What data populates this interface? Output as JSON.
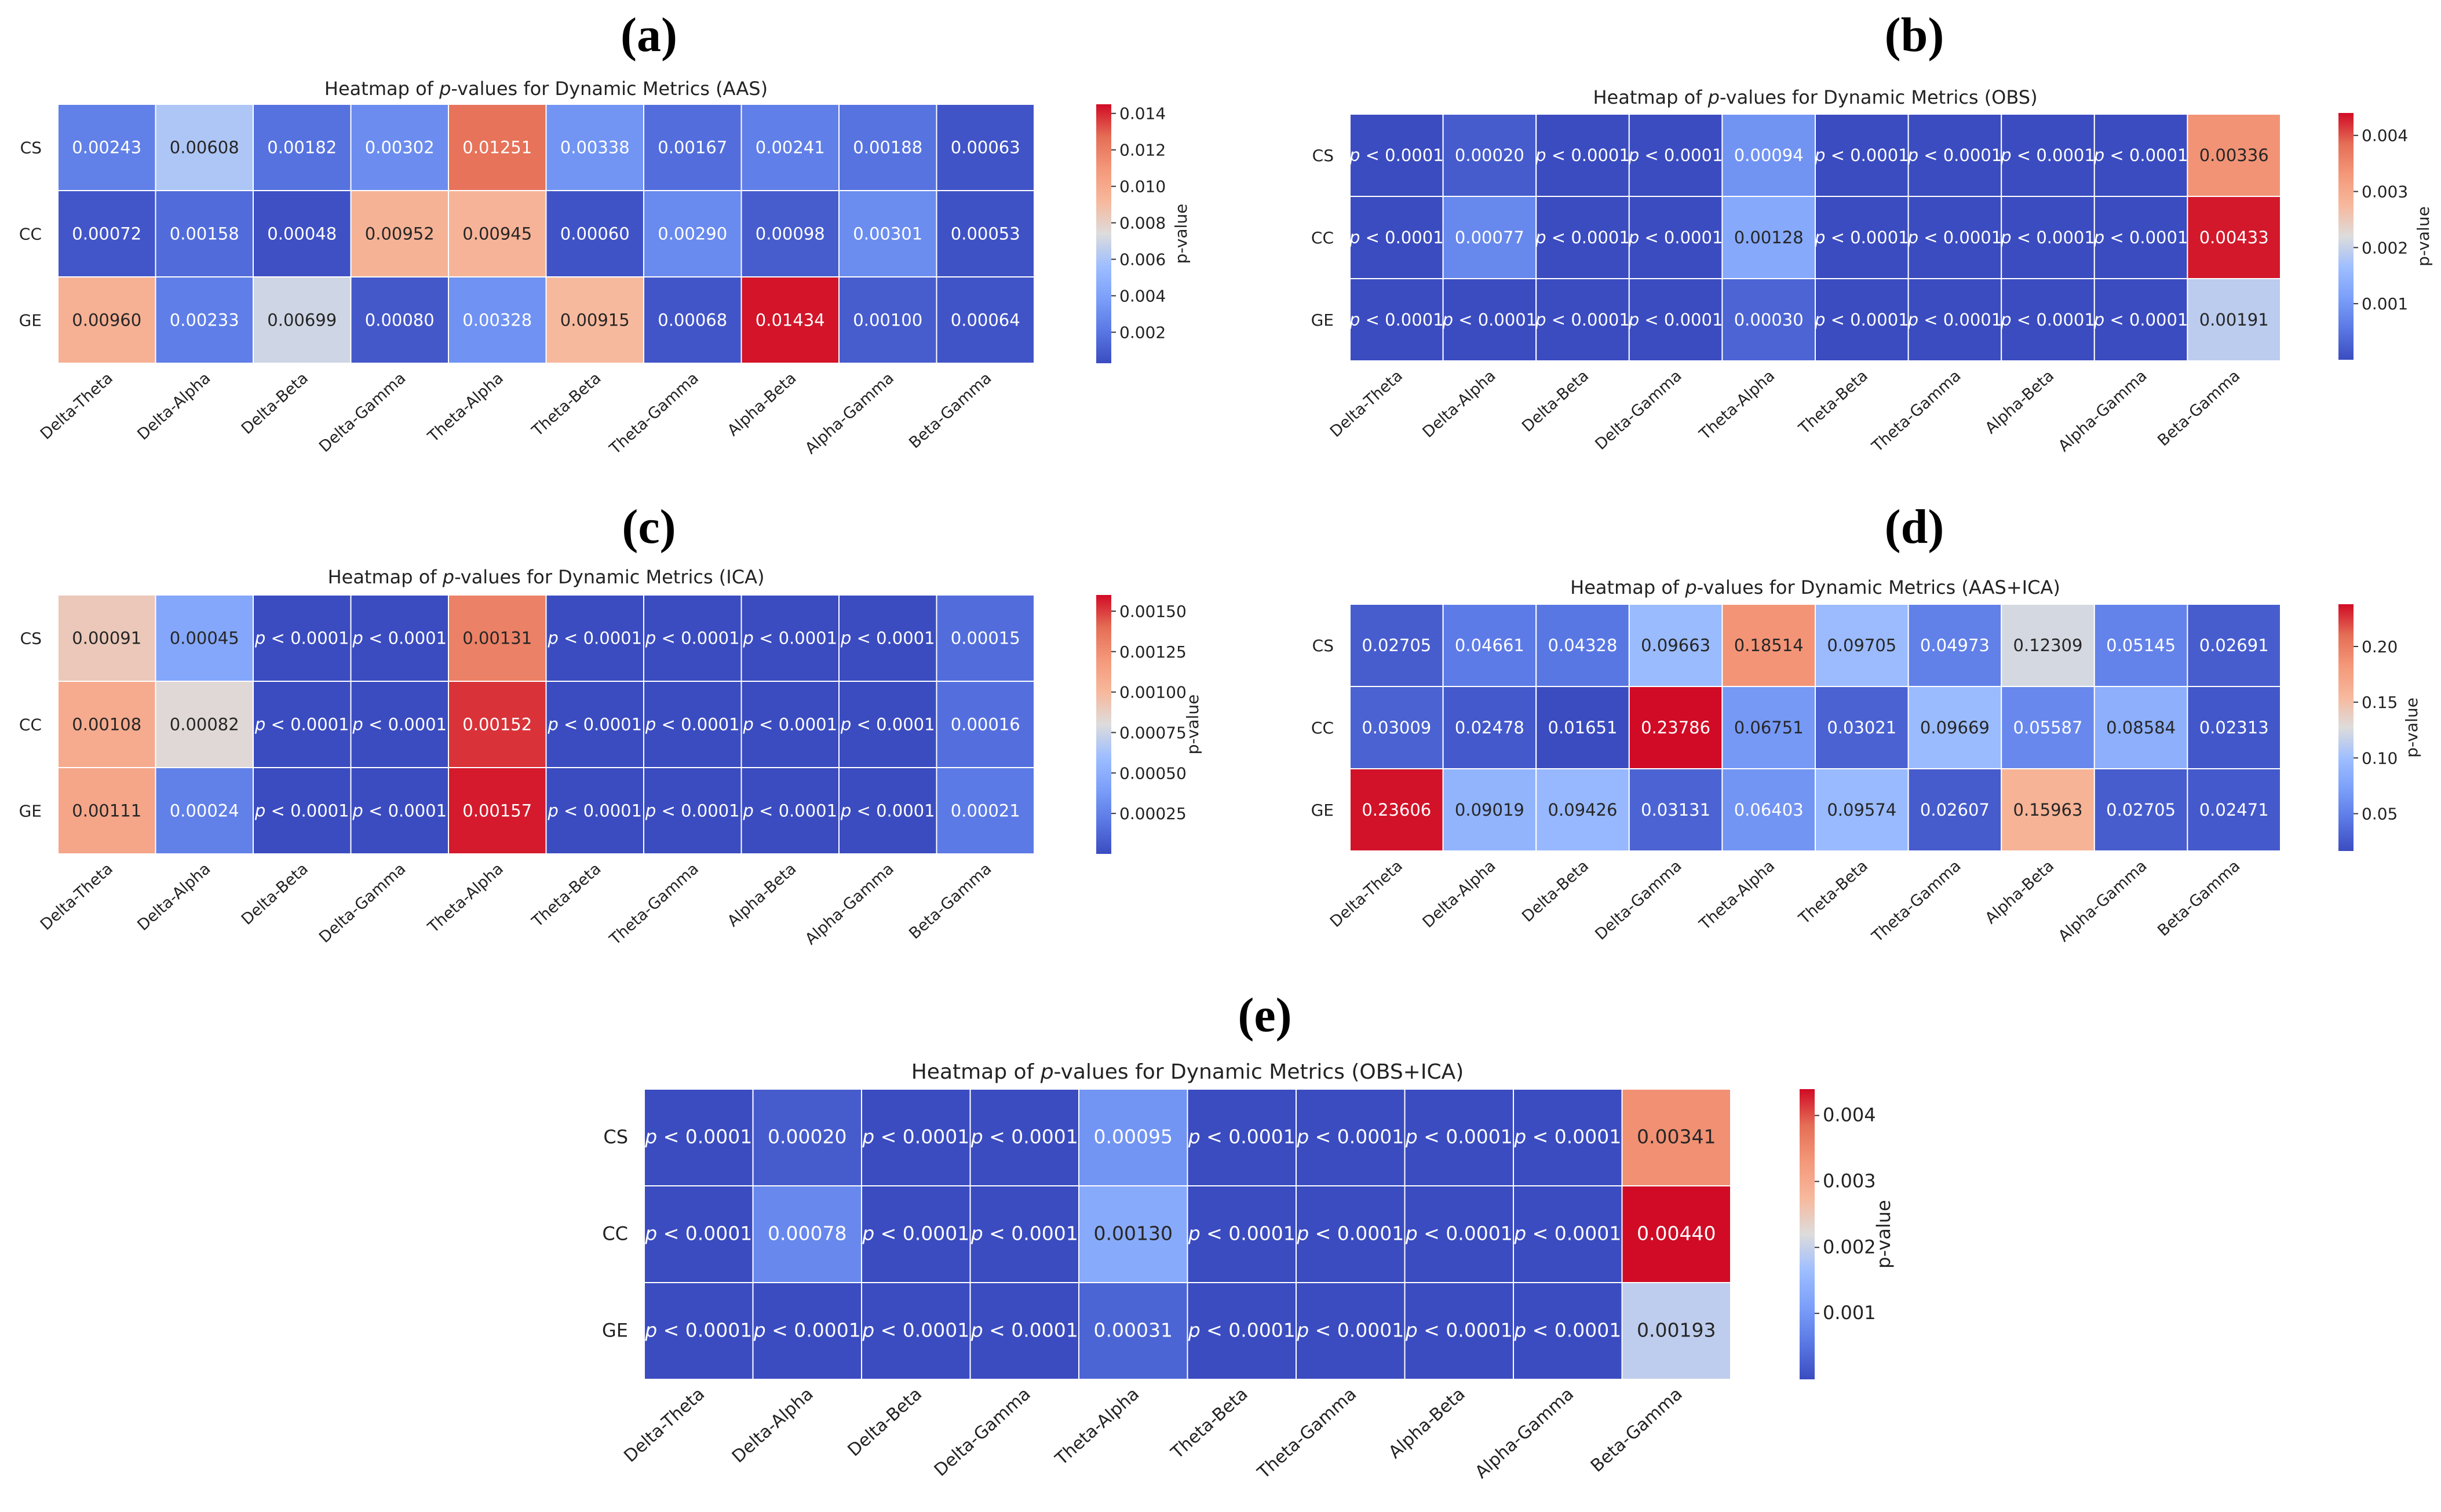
{
  "figure": {
    "caption_labels": [
      "(a)",
      "(b)",
      "(c)",
      "(d)",
      "(e)"
    ]
  },
  "colors": {
    "low": "#3b4cc0",
    "mid": "#dddcdc",
    "high": "#d10b25"
  },
  "chart_data": [
    {
      "id": "a",
      "panel_label": "(a)",
      "type": "heatmap",
      "title_prefix": "Heatmap of ",
      "title_italic": "p",
      "title_suffix": "-values for Dynamic Metrics (AAS)",
      "rows": [
        "CS",
        "CC",
        "GE"
      ],
      "columns": [
        "Delta-Theta",
        "Delta-Alpha",
        "Delta-Beta",
        "Delta-Gamma",
        "Theta-Alpha",
        "Theta-Beta",
        "Theta-Gamma",
        "Alpha-Beta",
        "Alpha-Gamma",
        "Beta-Gamma"
      ],
      "values": [
        [
          0.00243,
          0.00608,
          0.00182,
          0.00302,
          0.01251,
          0.00338,
          0.00167,
          0.00241,
          0.00188,
          0.00063
        ],
        [
          0.00072,
          0.00158,
          0.00048,
          0.00952,
          0.00945,
          0.0006,
          0.0029,
          0.00098,
          0.00301,
          0.00053
        ],
        [
          0.0096,
          0.00233,
          0.00699,
          0.0008,
          0.00328,
          0.00915,
          0.00068,
          0.01434,
          0.001,
          0.00064
        ]
      ],
      "labels": [
        [
          "0.00243",
          "0.00608",
          "0.00182",
          "0.00302",
          "0.01251",
          "0.00338",
          "0.00167",
          "0.00241",
          "0.00188",
          "0.00063"
        ],
        [
          "0.00072",
          "0.00158",
          "0.00048",
          "0.00952",
          "0.00945",
          "0.00060",
          "0.00290",
          "0.00098",
          "0.00301",
          "0.00053"
        ],
        [
          "0.00960",
          "0.00233",
          "0.00699",
          "0.00080",
          "0.00328",
          "0.00915",
          "0.00068",
          "0.01434",
          "0.00100",
          "0.00064"
        ]
      ],
      "colorbar": {
        "label": "p-value",
        "range": [
          0.0003,
          0.0145
        ],
        "ticks": [
          0.002,
          0.004,
          0.006,
          0.008,
          0.01,
          0.012,
          0.014
        ],
        "tick_labels": [
          "0.002",
          "0.004",
          "0.006",
          "0.008",
          "0.010",
          "0.012",
          "0.014"
        ]
      }
    },
    {
      "id": "b",
      "panel_label": "(b)",
      "type": "heatmap",
      "title_prefix": "Heatmap of ",
      "title_italic": "p",
      "title_suffix": "-values for Dynamic Metrics (OBS)",
      "rows": [
        "CS",
        "CC",
        "GE"
      ],
      "columns": [
        "Delta-Theta",
        "Delta-Alpha",
        "Delta-Beta",
        "Delta-Gamma",
        "Theta-Alpha",
        "Theta-Beta",
        "Theta-Gamma",
        "Alpha-Beta",
        "Alpha-Gamma",
        "Beta-Gamma"
      ],
      "values": [
        [
          0.0,
          0.0002,
          0.0,
          0.0,
          0.00094,
          0.0,
          0.0,
          0.0,
          0.0,
          0.00336
        ],
        [
          0.0,
          0.00077,
          0.0,
          0.0,
          0.00128,
          0.0,
          0.0,
          0.0,
          0.0,
          0.00433
        ],
        [
          0.0,
          0.0,
          0.0,
          0.0,
          0.0003,
          0.0,
          0.0,
          0.0,
          0.0,
          0.00191
        ]
      ],
      "labels": [
        [
          "p < 0.0001",
          "0.00020",
          "p < 0.0001",
          "p < 0.0001",
          "0.00094",
          "p < 0.0001",
          "p < 0.0001",
          "p < 0.0001",
          "p < 0.0001",
          "0.00336"
        ],
        [
          "p < 0.0001",
          "0.00077",
          "p < 0.0001",
          "p < 0.0001",
          "0.00128",
          "p < 0.0001",
          "p < 0.0001",
          "p < 0.0001",
          "p < 0.0001",
          "0.00433"
        ],
        [
          "p < 0.0001",
          "p < 0.0001",
          "p < 0.0001",
          "p < 0.0001",
          "0.00030",
          "p < 0.0001",
          "p < 0.0001",
          "p < 0.0001",
          "p < 0.0001",
          "0.00191"
        ]
      ],
      "colorbar": {
        "label": "p-value",
        "range": [
          0.0,
          0.0044
        ],
        "ticks": [
          0.001,
          0.002,
          0.003,
          0.004
        ],
        "tick_labels": [
          "0.001",
          "0.002",
          "0.003",
          "0.004"
        ]
      }
    },
    {
      "id": "c",
      "panel_label": "(c)",
      "type": "heatmap",
      "title_prefix": "Heatmap of ",
      "title_italic": "p",
      "title_suffix": "-values for Dynamic Metrics (ICA)",
      "rows": [
        "CS",
        "CC",
        "GE"
      ],
      "columns": [
        "Delta-Theta",
        "Delta-Alpha",
        "Delta-Beta",
        "Delta-Gamma",
        "Theta-Alpha",
        "Theta-Beta",
        "Theta-Gamma",
        "Alpha-Beta",
        "Alpha-Gamma",
        "Beta-Gamma"
      ],
      "values": [
        [
          0.00091,
          0.00045,
          0.0,
          0.0,
          0.00131,
          0.0,
          0.0,
          0.0,
          0.0,
          0.00015
        ],
        [
          0.00108,
          0.00082,
          0.0,
          0.0,
          0.00152,
          0.0,
          0.0,
          0.0,
          0.0,
          0.00016
        ],
        [
          0.00111,
          0.00024,
          0.0,
          0.0,
          0.00157,
          0.0,
          0.0,
          0.0,
          0.0,
          0.00021
        ]
      ],
      "labels": [
        [
          "0.00091",
          "0.00045",
          "p < 0.0001",
          "p < 0.0001",
          "0.00131",
          "p < 0.0001",
          "p < 0.0001",
          "p < 0.0001",
          "p < 0.0001",
          "0.00015"
        ],
        [
          "0.00108",
          "0.00082",
          "p < 0.0001",
          "p < 0.0001",
          "0.00152",
          "p < 0.0001",
          "p < 0.0001",
          "p < 0.0001",
          "p < 0.0001",
          "0.00016"
        ],
        [
          "0.00111",
          "0.00024",
          "p < 0.0001",
          "p < 0.0001",
          "0.00157",
          "p < 0.0001",
          "p < 0.0001",
          "p < 0.0001",
          "p < 0.0001",
          "0.00021"
        ]
      ],
      "colorbar": {
        "label": "p-value",
        "range": [
          0.0,
          0.0016
        ],
        "ticks": [
          0.00025,
          0.0005,
          0.00075,
          0.001,
          0.00125,
          0.0015
        ],
        "tick_labels": [
          "0.00025",
          "0.00050",
          "0.00075",
          "0.00100",
          "0.00125",
          "0.00150"
        ]
      }
    },
    {
      "id": "d",
      "panel_label": "(d)",
      "type": "heatmap",
      "title_prefix": "Heatmap of ",
      "title_italic": "p",
      "title_suffix": "-values for Dynamic Metrics (AAS+ICA)",
      "rows": [
        "CS",
        "CC",
        "GE"
      ],
      "columns": [
        "Delta-Theta",
        "Delta-Alpha",
        "Delta-Beta",
        "Delta-Gamma",
        "Theta-Alpha",
        "Theta-Beta",
        "Theta-Gamma",
        "Alpha-Beta",
        "Alpha-Gamma",
        "Beta-Gamma"
      ],
      "values": [
        [
          0.02705,
          0.04661,
          0.04328,
          0.09663,
          0.18514,
          0.09705,
          0.04973,
          0.12309,
          0.05145,
          0.02691
        ],
        [
          0.03009,
          0.02478,
          0.01651,
          0.23786,
          0.06751,
          0.03021,
          0.09669,
          0.05587,
          0.08584,
          0.02313
        ],
        [
          0.23606,
          0.09019,
          0.09426,
          0.03131,
          0.06403,
          0.09574,
          0.02607,
          0.15963,
          0.02705,
          0.02471
        ]
      ],
      "labels": [
        [
          "0.02705",
          "0.04661",
          "0.04328",
          "0.09663",
          "0.18514",
          "0.09705",
          "0.04973",
          "0.12309",
          "0.05145",
          "0.02691"
        ],
        [
          "0.03009",
          "0.02478",
          "0.01651",
          "0.23786",
          "0.06751",
          "0.03021",
          "0.09669",
          "0.05587",
          "0.08584",
          "0.02313"
        ],
        [
          "0.23606",
          "0.09019",
          "0.09426",
          "0.03131",
          "0.06403",
          "0.09574",
          "0.02607",
          "0.15963",
          "0.02705",
          "0.02471"
        ]
      ],
      "colorbar": {
        "label": "p-value",
        "range": [
          0.0165,
          0.2379
        ],
        "ticks": [
          0.05,
          0.1,
          0.15,
          0.2
        ],
        "tick_labels": [
          "0.05",
          "0.10",
          "0.15",
          "0.20"
        ]
      }
    },
    {
      "id": "e",
      "panel_label": "(e)",
      "type": "heatmap",
      "title_prefix": "Heatmap of ",
      "title_italic": "p",
      "title_suffix": "-values for Dynamic Metrics (OBS+ICA)",
      "rows": [
        "CS",
        "CC",
        "GE"
      ],
      "columns": [
        "Delta-Theta",
        "Delta-Alpha",
        "Delta-Beta",
        "Delta-Gamma",
        "Theta-Alpha",
        "Theta-Beta",
        "Theta-Gamma",
        "Alpha-Beta",
        "Alpha-Gamma",
        "Beta-Gamma"
      ],
      "values": [
        [
          0.0,
          0.0002,
          0.0,
          0.0,
          0.00095,
          0.0,
          0.0,
          0.0,
          0.0,
          0.00341
        ],
        [
          0.0,
          0.00078,
          0.0,
          0.0,
          0.0013,
          0.0,
          0.0,
          0.0,
          0.0,
          0.0044
        ],
        [
          0.0,
          0.0,
          0.0,
          0.0,
          0.00031,
          0.0,
          0.0,
          0.0,
          0.0,
          0.00193
        ]
      ],
      "labels": [
        [
          "p < 0.0001",
          "0.00020",
          "p < 0.0001",
          "p < 0.0001",
          "0.00095",
          "p < 0.0001",
          "p < 0.0001",
          "p < 0.0001",
          "p < 0.0001",
          "0.00341"
        ],
        [
          "p < 0.0001",
          "0.00078",
          "p < 0.0001",
          "p < 0.0001",
          "0.00130",
          "p < 0.0001",
          "p < 0.0001",
          "p < 0.0001",
          "p < 0.0001",
          "0.00440"
        ],
        [
          "p < 0.0001",
          "p < 0.0001",
          "p < 0.0001",
          "p < 0.0001",
          "0.00031",
          "p < 0.0001",
          "p < 0.0001",
          "p < 0.0001",
          "p < 0.0001",
          "0.00193"
        ]
      ],
      "colorbar": {
        "label": "p-value",
        "range": [
          0.0,
          0.0044
        ],
        "ticks": [
          0.001,
          0.002,
          0.003,
          0.004
        ],
        "tick_labels": [
          "0.001",
          "0.002",
          "0.003",
          "0.004"
        ]
      }
    }
  ]
}
